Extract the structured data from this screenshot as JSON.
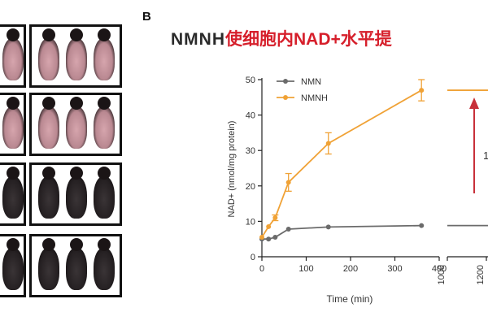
{
  "panel_label": "B",
  "title_prefix": "NMNH",
  "title_main": "使细胞内NAD+水平提",
  "photos": [
    {
      "row": 0,
      "tint": "pink"
    },
    {
      "row": 1,
      "tint": "pink"
    },
    {
      "row": 2,
      "tint": "dark"
    },
    {
      "row": 3,
      "tint": "dark"
    }
  ],
  "chart_data": {
    "type": "line",
    "title": "NMNH使细胞内NAD+水平提",
    "xlabel": "Time (min)",
    "ylabel": "NAD+ (nmol/mg protein)",
    "ylim": [
      0,
      50
    ],
    "yticks": [
      0,
      10,
      20,
      30,
      40,
      50
    ],
    "xlim_segment1": [
      0,
      400
    ],
    "xticks_segment1": [
      0,
      100,
      200,
      300,
      400
    ],
    "xlim_segment2": [
      1000,
      1200
    ],
    "xticks_segment2": [
      1000,
      1200
    ],
    "legend_position": "top-left",
    "series": [
      {
        "name": "NMN",
        "color": "#6b6b6b",
        "x": [
          0,
          15,
          30,
          60,
          150,
          360
        ],
        "y": [
          5,
          5,
          5.5,
          7.8,
          8.4,
          8.8
        ],
        "err": [
          0.3,
          0.3,
          0.4,
          0.5,
          0.5,
          0.6
        ]
      },
      {
        "name": "NMNH",
        "color": "#f0a236",
        "x": [
          0,
          15,
          30,
          60,
          150,
          360
        ],
        "y": [
          5.5,
          8.5,
          11,
          21,
          32,
          47
        ],
        "err": [
          0.5,
          0.6,
          0.8,
          2.5,
          3,
          3
        ]
      }
    ],
    "continuation_right": [
      {
        "series": "NMNH",
        "y": 47
      },
      {
        "series": "NMN",
        "y": 8.8
      }
    ],
    "annotation_partial": "1"
  }
}
